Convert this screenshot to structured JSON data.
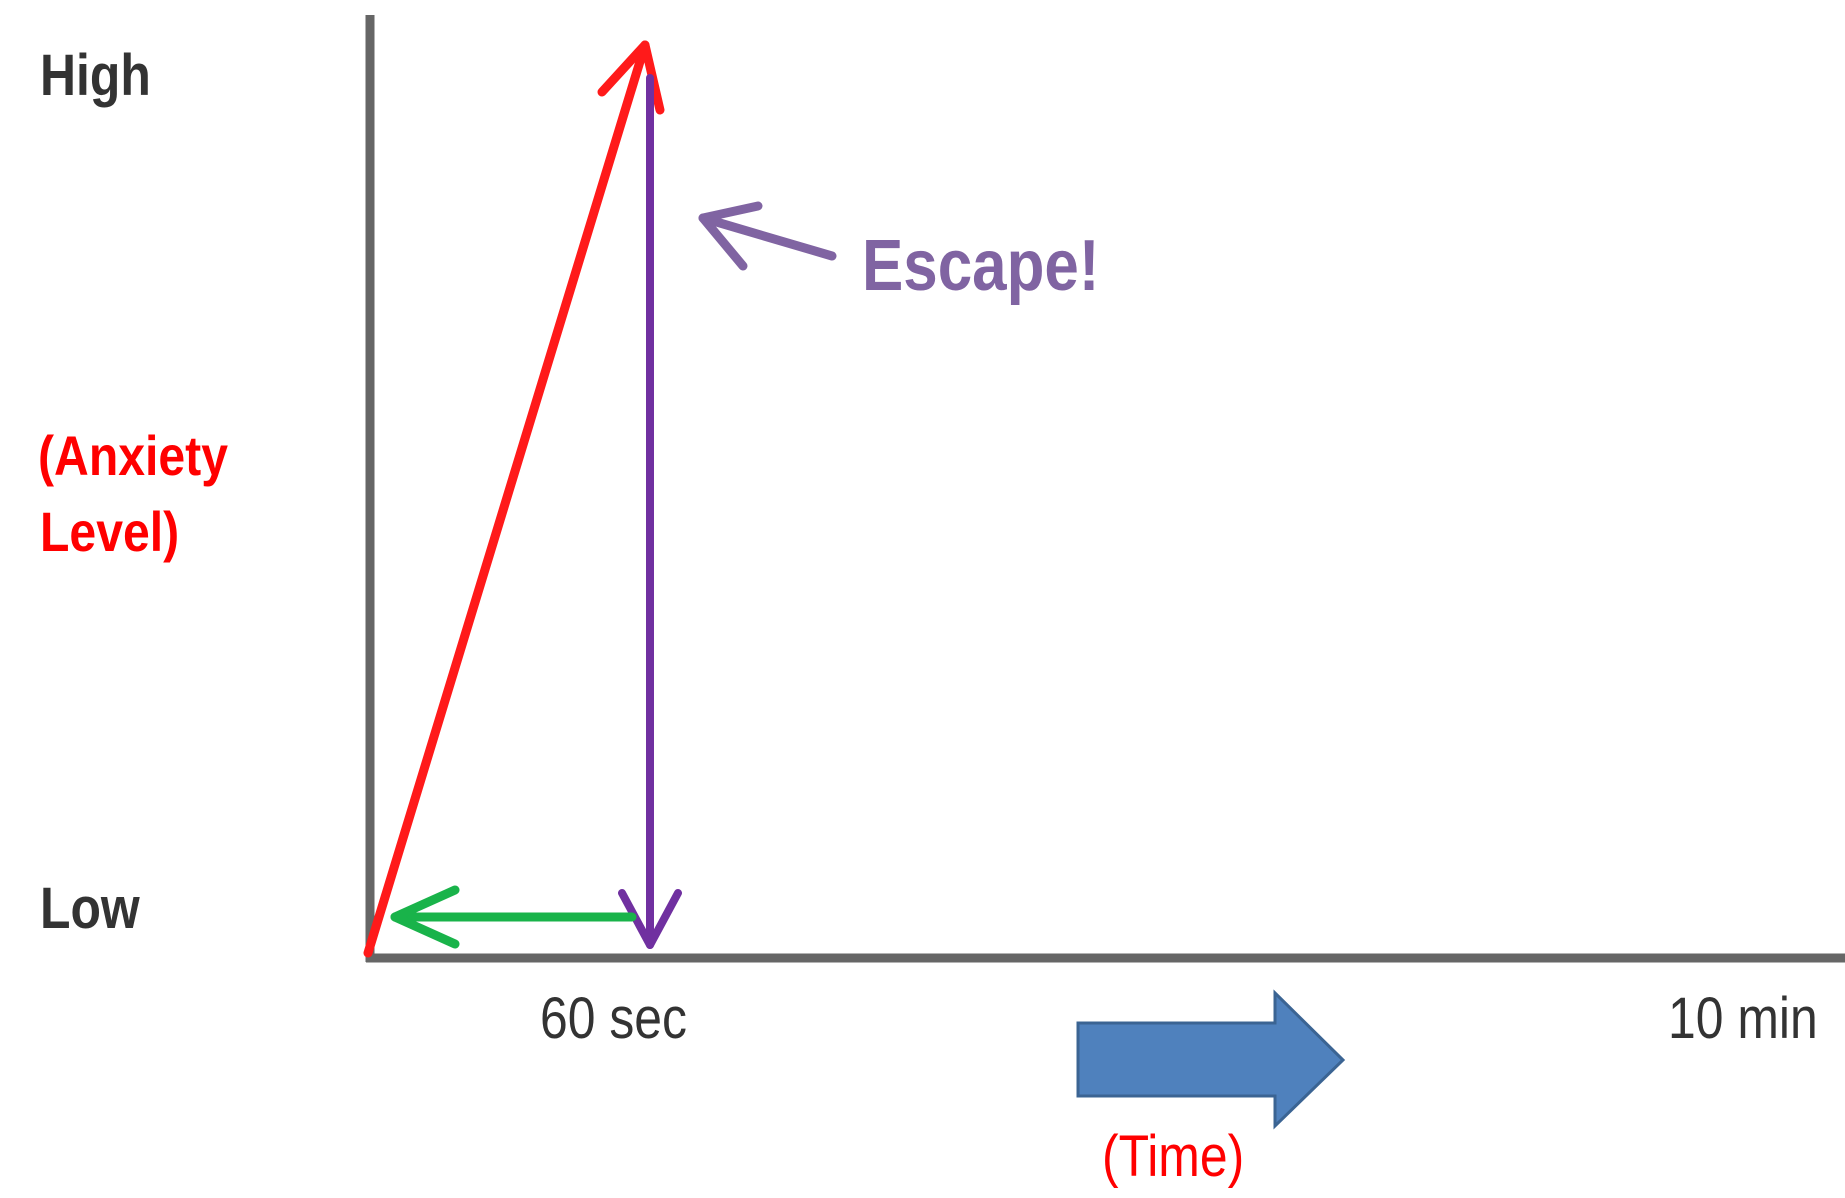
{
  "y_axis": {
    "high_label": "High",
    "low_label": "Low",
    "title_line1": "(Anxiety",
    "title_line2": "Level)"
  },
  "x_axis": {
    "tick_60": "60 sec",
    "tick_10": "10 min",
    "title": "(Time)"
  },
  "annotation": {
    "escape": "Escape!"
  },
  "colors": {
    "axis": "#666666",
    "rise": "#ff1a1a",
    "escape_drop": "#7030a0",
    "escape_text": "#8064a2",
    "return": "#19b34a",
    "time_arrow": "#4f81bd",
    "time_arrow_stroke": "#3b6493",
    "label_dark": "#333333",
    "label_red": "#ff0000"
  }
}
